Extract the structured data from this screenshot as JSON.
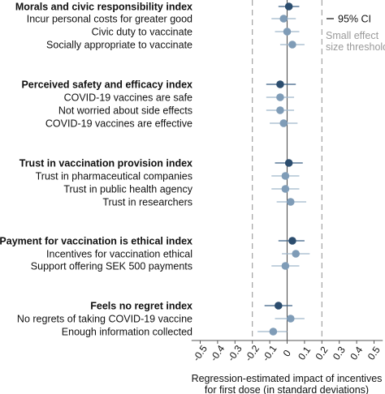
{
  "chart_data": {
    "type": "scatter",
    "xlabel": "Regression-estimated impact of incentives",
    "xlabel_line2": "for first dose (in standard deviations)",
    "xlim": [
      -0.55,
      0.55
    ],
    "x_ticks": [
      -0.5,
      -0.4,
      -0.3,
      -0.2,
      -0.1,
      0,
      0.1,
      0.2,
      0.3,
      0.4,
      0.5
    ],
    "x_tick_labels": [
      "-0.5",
      "-0.4",
      "-0.3",
      "-0.2",
      "-0.1",
      "0",
      "0.1",
      "0.2",
      "0.3",
      "0.4",
      "0.5"
    ],
    "reference_line": 0,
    "threshold_lines": [
      -0.2,
      0.2
    ],
    "legend": {
      "ci_label": "95% CI",
      "threshold_label_line1": "Small effect",
      "threshold_label_line2": "size threshold",
      "placement": "top-right"
    },
    "colors": {
      "index": "#2c4d6e",
      "item": "#7f9cb7",
      "ci_index": "#3a5f84",
      "ci_item": "#9fb6cb",
      "axis": "#555555",
      "threshold": "#9a9a9a",
      "text": "#111111",
      "muted": "#9a9a9a"
    },
    "rows": [
      {
        "label": "Morals and civic responsibility index",
        "kind": "index",
        "estimate": 0.01,
        "ci": [
          -0.05,
          0.07
        ]
      },
      {
        "label": "Incur personal costs for greater good",
        "kind": "item",
        "estimate": -0.02,
        "ci": [
          -0.09,
          0.05
        ]
      },
      {
        "label": "Civic duty to vaccinate",
        "kind": "item",
        "estimate": 0.0,
        "ci": [
          -0.07,
          0.07
        ]
      },
      {
        "label": "Socially appropriate to vaccinate",
        "kind": "item",
        "estimate": 0.03,
        "ci": [
          -0.04,
          0.1
        ]
      },
      {
        "label": "Perceived safety and efficacy index",
        "kind": "index",
        "estimate": -0.04,
        "ci": [
          -0.12,
          0.05
        ]
      },
      {
        "label": "COVID-19 vaccines are safe",
        "kind": "item",
        "estimate": -0.04,
        "ci": [
          -0.12,
          0.04
        ]
      },
      {
        "label": "Not worried about side effects",
        "kind": "item",
        "estimate": -0.04,
        "ci": [
          -0.12,
          0.04
        ]
      },
      {
        "label": "COVID-19 vaccines are effective",
        "kind": "item",
        "estimate": -0.02,
        "ci": [
          -0.1,
          0.06
        ]
      },
      {
        "label": "Trust in vaccination provision index",
        "kind": "index",
        "estimate": 0.01,
        "ci": [
          -0.07,
          0.09
        ]
      },
      {
        "label": "Trust in pharmaceutical companies",
        "kind": "item",
        "estimate": -0.01,
        "ci": [
          -0.09,
          0.07
        ]
      },
      {
        "label": "Trust in public health agency",
        "kind": "item",
        "estimate": -0.01,
        "ci": [
          -0.09,
          0.07
        ]
      },
      {
        "label": "Trust in researchers",
        "kind": "item",
        "estimate": 0.02,
        "ci": [
          -0.06,
          0.11
        ]
      },
      {
        "label": "Payment for vaccination is ethical index",
        "kind": "index",
        "estimate": 0.03,
        "ci": [
          -0.05,
          0.1
        ]
      },
      {
        "label": "Incentives for vaccination ethical",
        "kind": "item",
        "estimate": 0.05,
        "ci": [
          -0.03,
          0.13
        ]
      },
      {
        "label": "Support offering SEK 500 payments",
        "kind": "item",
        "estimate": -0.01,
        "ci": [
          -0.09,
          0.07
        ]
      },
      {
        "label": "Feels no regret index",
        "kind": "index",
        "estimate": -0.05,
        "ci": [
          -0.13,
          0.03
        ]
      },
      {
        "label": "No regrets of taking COVID-19 vaccine",
        "kind": "item",
        "estimate": 0.02,
        "ci": [
          -0.07,
          0.1
        ]
      },
      {
        "label": "Enough information collected",
        "kind": "item",
        "estimate": -0.08,
        "ci": [
          -0.17,
          0.0
        ]
      }
    ]
  }
}
